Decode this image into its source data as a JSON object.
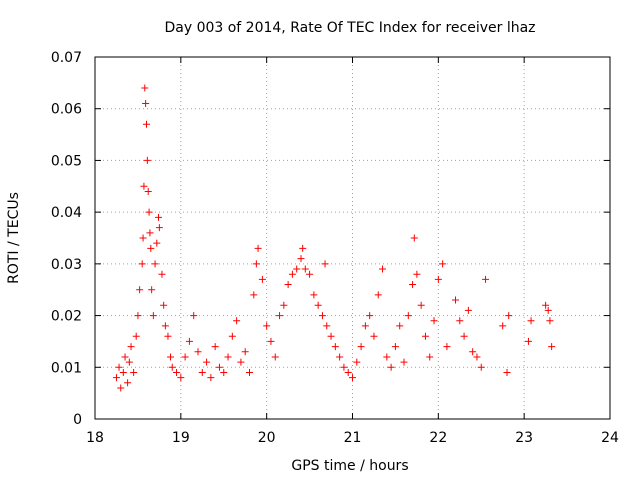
{
  "chart_data": {
    "type": "scatter",
    "title": "Day 003 of 2014, Rate Of TEC Index for receiver lhaz",
    "xlabel": "GPS time / hours",
    "ylabel": "ROTI / TECUs",
    "xlim": [
      18,
      24
    ],
    "ylim": [
      0,
      0.07
    ],
    "x_ticks": [
      "18",
      "19",
      "20",
      "21",
      "22",
      "23",
      "24"
    ],
    "y_ticks": [
      "0",
      "0.01",
      "0.02",
      "0.03",
      "0.04",
      "0.05",
      "0.06",
      "0.07"
    ],
    "grid": true,
    "marker": "+",
    "color": "#ff0000",
    "series": [
      {
        "name": "ROTI",
        "x": [
          18.25,
          18.28,
          18.3,
          18.33,
          18.35,
          18.38,
          18.4,
          18.42,
          18.45,
          18.48,
          18.5,
          18.52,
          18.55,
          18.56,
          18.57,
          18.58,
          18.59,
          18.6,
          18.61,
          18.62,
          18.63,
          18.64,
          18.65,
          18.66,
          18.68,
          18.7,
          18.72,
          18.74,
          18.75,
          18.78,
          18.8,
          18.82,
          18.85,
          18.88,
          18.9,
          18.95,
          19.0,
          19.05,
          19.1,
          19.15,
          19.2,
          19.25,
          19.3,
          19.35,
          19.4,
          19.45,
          19.5,
          19.55,
          19.6,
          19.65,
          19.7,
          19.75,
          19.8,
          19.85,
          19.88,
          19.9,
          19.95,
          20.0,
          20.05,
          20.1,
          20.15,
          20.2,
          20.25,
          20.3,
          20.35,
          20.4,
          20.42,
          20.45,
          20.5,
          20.55,
          20.6,
          20.65,
          20.68,
          20.7,
          20.75,
          20.8,
          20.85,
          20.9,
          20.95,
          21.0,
          21.05,
          21.1,
          21.15,
          21.2,
          21.25,
          21.3,
          21.35,
          21.4,
          21.45,
          21.5,
          21.55,
          21.6,
          21.65,
          21.7,
          21.72,
          21.75,
          21.8,
          21.85,
          21.9,
          21.95,
          22.0,
          22.05,
          22.1,
          22.2,
          22.25,
          22.3,
          22.35,
          22.4,
          22.45,
          22.5,
          22.55,
          22.75,
          22.8,
          22.82,
          23.05,
          23.08,
          23.25,
          23.28,
          23.3,
          23.32
        ],
        "y": [
          0.008,
          0.01,
          0.006,
          0.009,
          0.012,
          0.007,
          0.011,
          0.014,
          0.009,
          0.016,
          0.02,
          0.025,
          0.03,
          0.035,
          0.045,
          0.064,
          0.061,
          0.057,
          0.05,
          0.044,
          0.04,
          0.036,
          0.033,
          0.025,
          0.02,
          0.03,
          0.034,
          0.039,
          0.037,
          0.028,
          0.022,
          0.018,
          0.016,
          0.012,
          0.01,
          0.009,
          0.008,
          0.012,
          0.015,
          0.02,
          0.013,
          0.009,
          0.011,
          0.008,
          0.014,
          0.01,
          0.009,
          0.012,
          0.016,
          0.019,
          0.011,
          0.013,
          0.009,
          0.024,
          0.03,
          0.033,
          0.027,
          0.018,
          0.015,
          0.012,
          0.02,
          0.022,
          0.026,
          0.028,
          0.029,
          0.031,
          0.033,
          0.029,
          0.028,
          0.024,
          0.022,
          0.02,
          0.03,
          0.018,
          0.016,
          0.014,
          0.012,
          0.01,
          0.009,
          0.008,
          0.011,
          0.014,
          0.018,
          0.02,
          0.016,
          0.024,
          0.029,
          0.012,
          0.01,
          0.014,
          0.018,
          0.011,
          0.02,
          0.026,
          0.035,
          0.028,
          0.022,
          0.016,
          0.012,
          0.019,
          0.027,
          0.03,
          0.014,
          0.023,
          0.019,
          0.016,
          0.021,
          0.013,
          0.012,
          0.01,
          0.027,
          0.018,
          0.009,
          0.02,
          0.015,
          0.019,
          0.022,
          0.021,
          0.019,
          0.014
        ]
      }
    ]
  }
}
